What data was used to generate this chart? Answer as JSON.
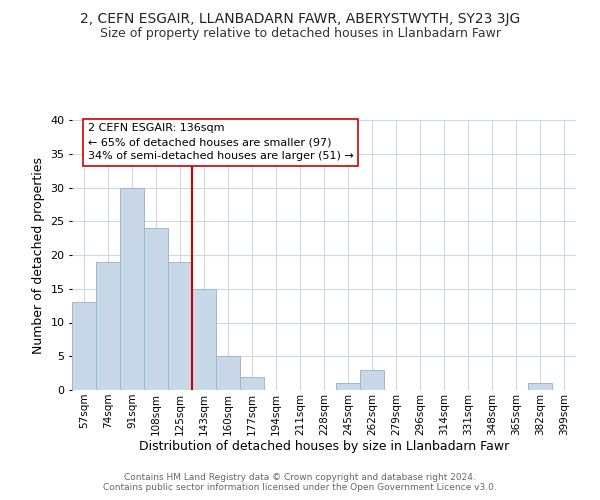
{
  "title": "2, CEFN ESGAIR, LLANBADARN FAWR, ABERYSTWYTH, SY23 3JG",
  "subtitle": "Size of property relative to detached houses in Llanbadarn Fawr",
  "xlabel": "Distribution of detached houses by size in Llanbadarn Fawr",
  "ylabel": "Number of detached properties",
  "bar_labels": [
    "57sqm",
    "74sqm",
    "91sqm",
    "108sqm",
    "125sqm",
    "143sqm",
    "160sqm",
    "177sqm",
    "194sqm",
    "211sqm",
    "228sqm",
    "245sqm",
    "262sqm",
    "279sqm",
    "296sqm",
    "314sqm",
    "331sqm",
    "348sqm",
    "365sqm",
    "382sqm",
    "399sqm"
  ],
  "bar_values": [
    13,
    19,
    30,
    24,
    19,
    15,
    5,
    2,
    0,
    0,
    0,
    1,
    3,
    0,
    0,
    0,
    0,
    0,
    0,
    1,
    0
  ],
  "bar_color": "#c8d8e8",
  "bar_edge_color": "#a0b8cc",
  "vline_x_index": 5,
  "vline_color": "#cc0000",
  "ylim": [
    0,
    40
  ],
  "yticks": [
    0,
    5,
    10,
    15,
    20,
    25,
    30,
    35,
    40
  ],
  "annotation_line1": "2 CEFN ESGAIR: 136sqm",
  "annotation_line2": "← 65% of detached houses are smaller (97)",
  "annotation_line3": "34% of semi-detached houses are larger (51) →",
  "annotation_box_color": "#ffffff",
  "annotation_box_edge": "#cc0000",
  "footer_text": "Contains HM Land Registry data © Crown copyright and database right 2024.\nContains public sector information licensed under the Open Government Licence v3.0.",
  "background_color": "#ffffff",
  "grid_color": "#d0d8e0"
}
